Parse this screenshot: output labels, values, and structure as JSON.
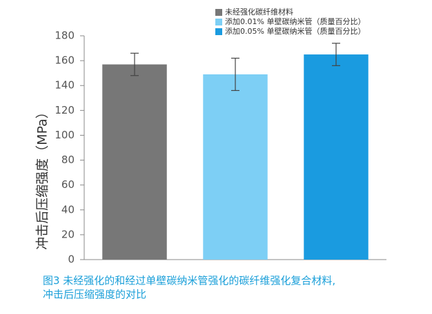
{
  "chart_data": {
    "type": "bar",
    "categories": [
      null
    ],
    "series": [
      {
        "name": "未经强化碳纤维材料",
        "color": "#777777",
        "values": [
          157
        ],
        "errors": [
          9
        ]
      },
      {
        "name": "添加0.01% 单壁碳纳米管（质量百分比）",
        "color": "#7dcff5",
        "values": [
          149
        ],
        "errors": [
          13
        ]
      },
      {
        "name": "添加0.05% 单壁碳纳米管（质量百分比）",
        "color": "#1a9be0",
        "values": [
          165
        ],
        "errors": [
          9
        ]
      }
    ],
    "ylabel": "冲击后压缩强度（MPa）",
    "ylim": [
      0,
      180
    ],
    "yticks": [
      0,
      20,
      40,
      60,
      80,
      100,
      120,
      140,
      160,
      180
    ],
    "legend": "top",
    "caption": [
      "图3 未经强化的和经过单壁碳纳米管强化的碳纤维强化复合材料,",
      "冲击后压缩强度的对比"
    ]
  }
}
